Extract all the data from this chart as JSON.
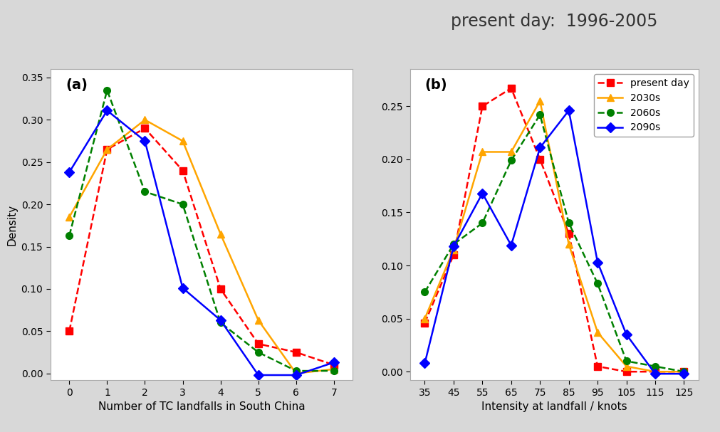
{
  "title": "present day:  1996-2005",
  "title_fontsize": 17,
  "title_color": "#333333",
  "panel_a": {
    "label": "(a)",
    "xlabel": "Number of TC landfalls in South China",
    "ylabel": "Density",
    "xlim": [
      -0.5,
      7.5
    ],
    "ylim": [
      -0.008,
      0.36
    ],
    "xticks": [
      0,
      1,
      2,
      3,
      4,
      5,
      6,
      7
    ],
    "yticks": [
      0.0,
      0.05,
      0.1,
      0.15,
      0.2,
      0.25,
      0.3,
      0.35
    ],
    "series": {
      "present_day": {
        "x": [
          0,
          1,
          2,
          3,
          4,
          5,
          6,
          7
        ],
        "y": [
          0.05,
          0.265,
          0.29,
          0.24,
          0.1,
          0.035,
          0.025,
          0.01
        ],
        "color": "#ff0000",
        "linestyle": "--",
        "marker": "s",
        "markersize": 7
      },
      "2030s": {
        "x": [
          0,
          1,
          2,
          3,
          4,
          5,
          6,
          7
        ],
        "y": [
          0.185,
          0.265,
          0.3,
          0.275,
          0.165,
          0.063,
          0.0,
          0.005
        ],
        "color": "#ffa500",
        "linestyle": "-",
        "marker": "^",
        "markersize": 7
      },
      "2060s": {
        "x": [
          0,
          1,
          2,
          3,
          4,
          5,
          6,
          7
        ],
        "y": [
          0.163,
          0.335,
          0.215,
          0.2,
          0.06,
          0.025,
          0.003,
          0.003
        ],
        "color": "#008000",
        "linestyle": "--",
        "marker": "o",
        "markersize": 7
      },
      "2090s": {
        "x": [
          0,
          1,
          2,
          3,
          4,
          5,
          6,
          7
        ],
        "y": [
          0.238,
          0.311,
          0.275,
          0.101,
          0.063,
          -0.002,
          -0.002,
          0.013
        ],
        "color": "#0000ff",
        "linestyle": "-",
        "marker": "D",
        "markersize": 7
      }
    }
  },
  "panel_b": {
    "label": "(b)",
    "xlabel": "Intensity at landfall / knots",
    "ylabel": "",
    "xlim": [
      30,
      130
    ],
    "ylim": [
      -0.008,
      0.285
    ],
    "xticks": [
      35,
      45,
      55,
      65,
      75,
      85,
      95,
      105,
      115,
      125
    ],
    "yticks": [
      0.0,
      0.05,
      0.1,
      0.15,
      0.2,
      0.25
    ],
    "series": {
      "present_day": {
        "x": [
          35,
          45,
          55,
          65,
          75,
          85,
          95,
          105,
          115,
          125
        ],
        "y": [
          0.046,
          0.11,
          0.25,
          0.267,
          0.2,
          0.13,
          0.005,
          0.0,
          0.0,
          0.0
        ],
        "color": "#ff0000",
        "linestyle": "--",
        "marker": "s",
        "markersize": 7
      },
      "2030s": {
        "x": [
          35,
          45,
          55,
          65,
          75,
          85,
          95,
          105,
          115,
          125
        ],
        "y": [
          0.05,
          0.115,
          0.207,
          0.207,
          0.255,
          0.12,
          0.037,
          0.005,
          0.0,
          0.0
        ],
        "color": "#ffa500",
        "linestyle": "-",
        "marker": "^",
        "markersize": 7
      },
      "2060s": {
        "x": [
          35,
          45,
          55,
          65,
          75,
          85,
          95,
          105,
          115,
          125
        ],
        "y": [
          0.075,
          0.12,
          0.14,
          0.199,
          0.242,
          0.14,
          0.083,
          0.01,
          0.005,
          0.0
        ],
        "color": "#008000",
        "linestyle": "--",
        "marker": "o",
        "markersize": 7
      },
      "2090s": {
        "x": [
          35,
          45,
          55,
          65,
          75,
          85,
          95,
          105,
          115,
          125
        ],
        "y": [
          0.008,
          0.118,
          0.168,
          0.119,
          0.211,
          0.246,
          0.103,
          0.035,
          -0.002,
          -0.002
        ],
        "color": "#0000ff",
        "linestyle": "-",
        "marker": "D",
        "markersize": 7
      }
    },
    "legend": {
      "labels": [
        "present day",
        "2030s",
        "2060s",
        "2090s"
      ],
      "colors": [
        "#ff0000",
        "#ffa500",
        "#008000",
        "#0000ff"
      ],
      "linestyles": [
        "--",
        "-",
        "--",
        "-"
      ],
      "markers": [
        "s",
        "^",
        "o",
        "D"
      ]
    }
  }
}
